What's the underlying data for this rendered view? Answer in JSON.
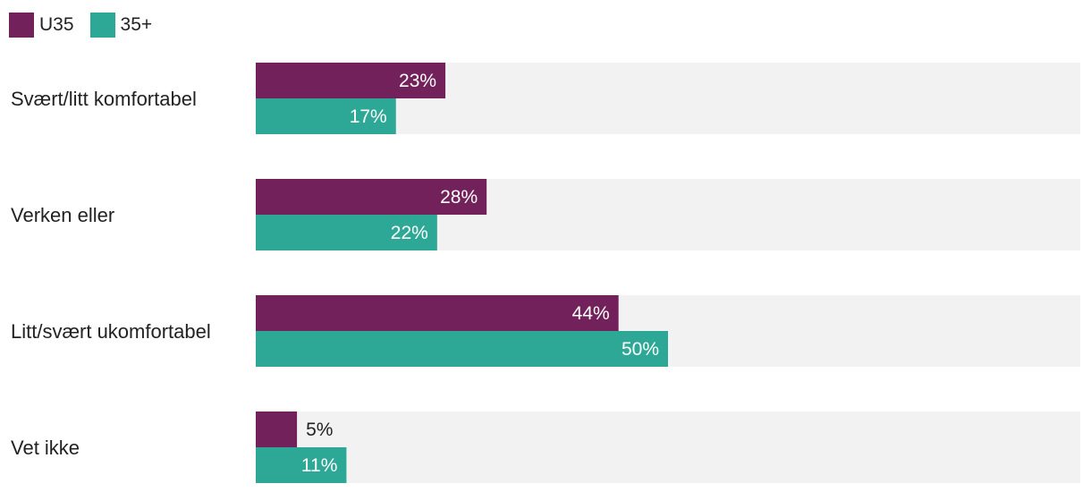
{
  "chart_data": {
    "type": "bar",
    "orientation": "horizontal",
    "categories": [
      "Svært/litt komfortabel",
      "Verken eller",
      "Litt/svært ukomfortabel",
      "Vet ikke"
    ],
    "series": [
      {
        "name": "U35",
        "values": [
          23,
          28,
          44,
          5
        ],
        "labels": [
          "23%",
          "28%",
          "44%",
          "5%"
        ],
        "color": "#72215a"
      },
      {
        "name": "35+",
        "values": [
          17,
          22,
          50,
          11
        ],
        "labels": [
          "17%",
          "22%",
          "50%",
          "11%"
        ],
        "color": "#2ea896"
      }
    ],
    "xlim": [
      0,
      100
    ],
    "legend": "top-left",
    "track_color": "#f2f2f2",
    "grid": false
  }
}
